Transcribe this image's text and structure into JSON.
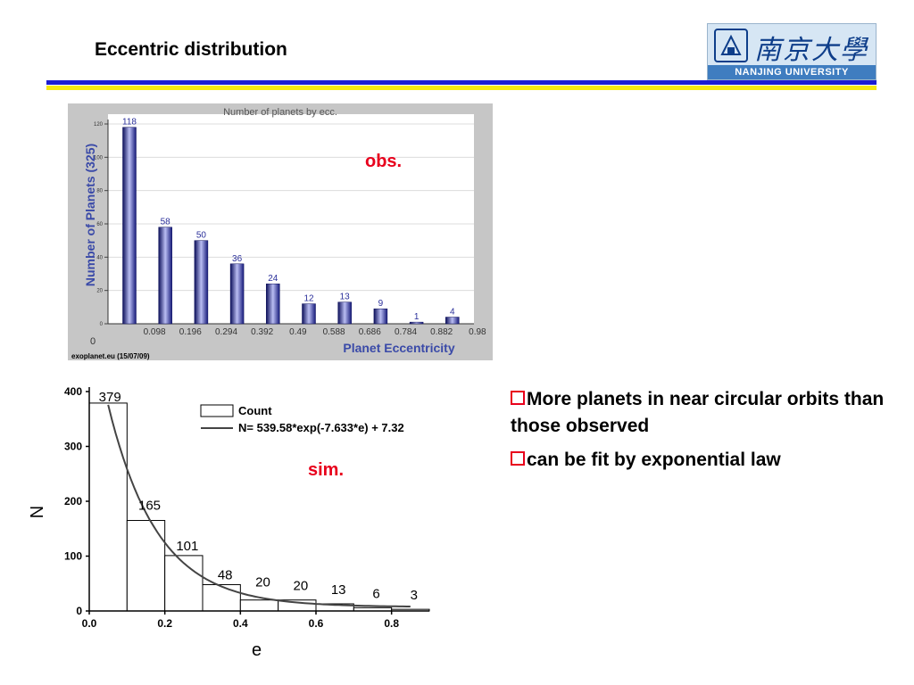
{
  "slide": {
    "title": "Eccentric distribution",
    "logo_cn": "南京大學",
    "logo_en": "NANJING UNIVERSITY",
    "obs_label": "obs.",
    "sim_label": "sim.",
    "bullets": [
      "More planets in near circular orbits than those observed",
      "can be fit by exponential law"
    ],
    "accent_color": "#e8001c",
    "rule_colors": [
      "#1c1cd2",
      "#f6e812"
    ]
  },
  "chart_data": [
    {
      "type": "bar",
      "title": "Number of planets by ecc.",
      "xlabel": "Planet Eccentricity",
      "ylabel": "Number of Planets (325)",
      "x_ticks": [
        "0.098",
        "0.196",
        "0.294",
        "0.392",
        "0.49",
        "0.588",
        "0.686",
        "0.784",
        "0.882",
        "0.98"
      ],
      "x_origin_label": "0",
      "y_ticks": [
        "0",
        "20",
        "40",
        "60",
        "80",
        "100",
        "120"
      ],
      "ylim": [
        0,
        120
      ],
      "values": [
        118,
        58,
        50,
        36,
        24,
        12,
        13,
        9,
        1,
        4
      ],
      "value_labels": [
        "118",
        "58",
        "50",
        "36",
        "24",
        "12",
        "13",
        "9",
        "1",
        "4"
      ],
      "source": "exoplanet.eu (15/07/09)",
      "grid": true,
      "bar_color": "#2a2f9a"
    },
    {
      "type": "bar",
      "xlabel": "e",
      "ylabel": "N",
      "xlim": [
        0,
        0.9
      ],
      "ylim": [
        0,
        400
      ],
      "x_ticks": [
        "0.0",
        "0.2",
        "0.4",
        "0.6",
        "0.8"
      ],
      "y_ticks": [
        "0",
        "100",
        "200",
        "300",
        "400"
      ],
      "bin_edges": [
        0,
        0.1,
        0.2,
        0.3,
        0.4,
        0.5,
        0.6,
        0.7,
        0.8,
        0.9
      ],
      "values": [
        379,
        165,
        101,
        48,
        20,
        20,
        13,
        6,
        3
      ],
      "value_labels": [
        "379",
        "165",
        "101",
        "48",
        "20",
        "20",
        "13",
        "6",
        "3"
      ],
      "legend": [
        "Count",
        "N= 539.58*exp(-7.633*e) + 7.32"
      ],
      "legend_placement": "top-right",
      "fit": {
        "a": 539.58,
        "b": 7.633,
        "c": 7.32,
        "e_range": [
          0.05,
          0.85
        ]
      }
    }
  ]
}
